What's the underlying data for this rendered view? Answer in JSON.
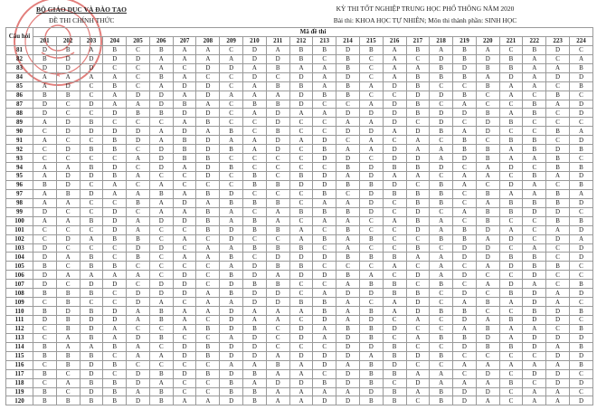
{
  "header": {
    "ministry": "BỘ GIÁO DỤC VÀ ĐÀO TẠO",
    "official": "ĐỀ THI CHÍNH THỨC",
    "exam_title": "KỲ THI TỐT NGHIỆP TRUNG HỌC PHỔ THÔNG NĂM 2020",
    "subject": "Bài thi: KHOA HỌC TỰ NHIÊN; Môn thi thành phần: SINH HỌC"
  },
  "seal_color": "#d9534f",
  "table": {
    "question_header": "Câu hỏi",
    "code_header": "Mã đề thi",
    "codes": [
      "201",
      "202",
      "203",
      "204",
      "205",
      "206",
      "207",
      "208",
      "209",
      "210",
      "211",
      "212",
      "213",
      "214",
      "215",
      "216",
      "217",
      "218",
      "219",
      "220",
      "221",
      "222",
      "223",
      "224"
    ],
    "rows": [
      {
        "q": "81",
        "a": "DBABCBAACDABBDBABABACBDC"
      },
      {
        "q": "82",
        "a": "BDDDDAAAADDBCBCACDBDBACA"
      },
      {
        "q": "83",
        "a": "DDDCCACDDABAABCAABDBBAAB"
      },
      {
        "q": "84",
        "a": "AAAACBACCDCDADCABBBADADD"
      },
      {
        "q": "85",
        "a": "ADCBCADDCABBABADBCCBAACB"
      },
      {
        "q": "86",
        "a": "BBCADDADAAADBBCCDDBCACBC"
      },
      {
        "q": "87",
        "a": "DCDAADBACBBDCCADBCACCBAD"
      },
      {
        "q": "88",
        "a": "DCCDBBDDCADAADDDBDDBABCD"
      },
      {
        "q": "89",
        "a": "ADBCCCABCCDCCAADCDCDBCCC"
      },
      {
        "q": "90",
        "a": "CDDDDADABCBCCDDADBADCCBA"
      },
      {
        "q": "91",
        "a": "ACCBDABDAADADCACACBCBBCD"
      },
      {
        "q": "92",
        "a": "CDBBCDBDBADCBAADAABBABDB"
      },
      {
        "q": "93",
        "a": "CCCCADBBCCCCDDCDDADBAABC"
      },
      {
        "q": "94",
        "a": "AABDCDADBCCCCBDBBDCADCBB"
      },
      {
        "q": "95",
        "a": "ADDBACCDCBCBDADAACAACBAD"
      },
      {
        "q": "96",
        "a": "BDCACACCCBBDDBBDCBACDACB"
      },
      {
        "q": "97",
        "a": "ABDAABABDCCCBCDBBBCBAABA"
      },
      {
        "q": "98",
        "a": "AACCBADABBBCAADCBBCABBBD"
      },
      {
        "q": "99",
        "a": "DCCDCAABACABBBDCDCABBDDC"
      },
      {
        "q": "100",
        "a": "AABDADDBABACAACABACBCCBB"
      },
      {
        "q": "101",
        "a": "CCCDACCBDBBACBCCDABDACAD"
      },
      {
        "q": "102",
        "a": "CDABBCACDCCABABCCBBADCDA"
      },
      {
        "q": "103",
        "a": "DCCCDDCAABBBCACCBCDDCACD"
      },
      {
        "q": "104",
        "a": "DABCBCAABCDDDBBBAADDBBCD"
      },
      {
        "q": "105",
        "a": "BCBBCCCCADBBCCCACACADBBC"
      },
      {
        "q": "106",
        "a": "DAAAACDCBDADDBACDADCCDCC"
      },
      {
        "q": "107",
        "a": "DCDDCDDCDBBCCABBCBCADACB"
      },
      {
        "q": "108",
        "a": "BBBCDDDABDDCADDBBCDCBDAD"
      },
      {
        "q": "109",
        "a": "CBCCDACAADDBBACADCABADAC"
      },
      {
        "q": "110",
        "a": "BDBDABAADAAABABADBBCCBDB"
      },
      {
        "q": "111",
        "a": "DBDDABACDAACDADCACDABDDC"
      },
      {
        "q": "112",
        "a": "CBDACCABDBCDABBDCCABAACB"
      },
      {
        "q": "113",
        "a": "CABADBCCADCDADBCABBDADDD"
      },
      {
        "q": "114",
        "a": "BAABACDBDDCCCDDBCCDBBDAB"
      },
      {
        "q": "115",
        "a": "BBBCAADBDDADDDABDBCCCCDD"
      },
      {
        "q": "116",
        "a": "CBDBCCCCAABADABDCCAAAAAB"
      },
      {
        "q": "117",
        "a": "BCDCDBDBDBAACDBBAACDCDDC"
      },
      {
        "q": "118",
        "a": "CABBDACCBADDBDBCDAAABCDD"
      },
      {
        "q": "119",
        "a": "BCDBABCCBBAAAADBABDDCAAC"
      },
      {
        "q": "120",
        "a": "BBBBDBAADBAADDBBCBDACAAD"
      }
    ]
  }
}
